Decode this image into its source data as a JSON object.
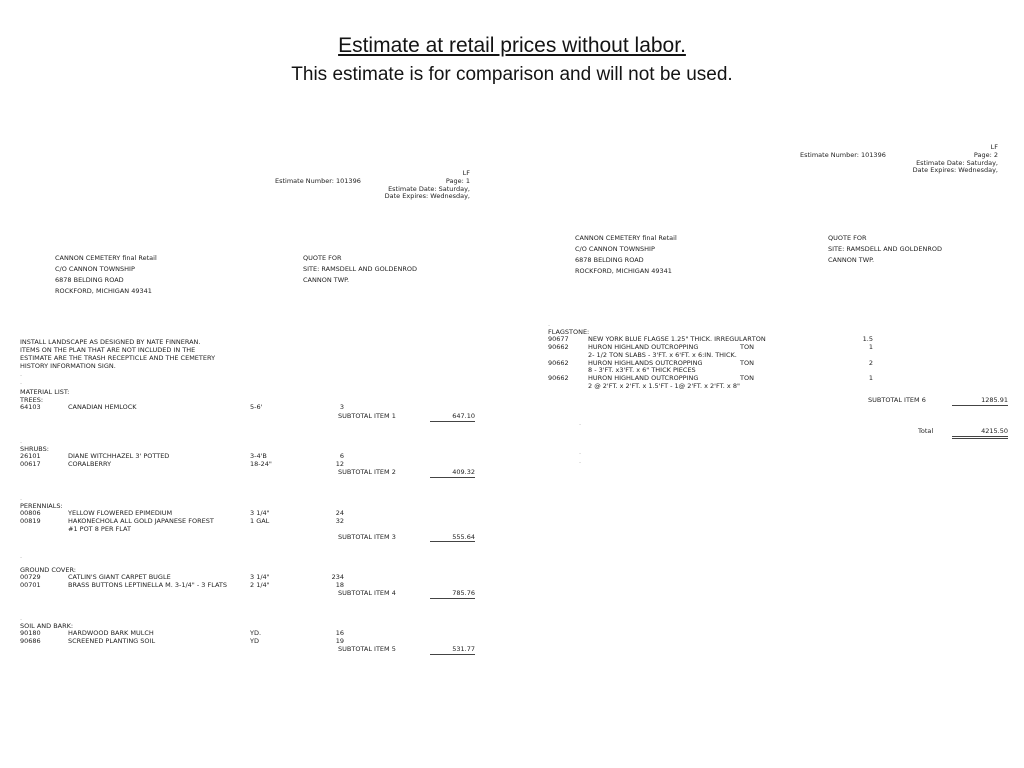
{
  "title": {
    "line1": "Estimate at retail prices without labor.",
    "line2": "This estimate is for comparison and will not be used."
  },
  "dot": ".",
  "page1": {
    "header": {
      "lf": "LF",
      "estimate_number": "Estimate Number: 101396",
      "page": "Page: 1",
      "estimate_date": "Estimate Date: Saturday,",
      "date_expires": "Date Expires:  Wednesday,"
    },
    "customer": [
      "CANNON CEMETERY final Retail",
      "C/O CANNON TOWNSHIP",
      "6878 BELDING ROAD",
      "ROCKFORD, MICHIGAN 49341"
    ],
    "quote": [
      "QUOTE FOR",
      "SITE:  RAMSDELL AND GOLDENROD",
      "CANNON TWP."
    ],
    "intro": [
      "INSTALL LANDSCAPE AS DESIGNED BY NATE FINNERAN.",
      "ITEMS ON THE PLAN THAT ARE NOT INCLUDED IN THE",
      "ESTIMATE ARE THE TRASH RECEPTICLE AND THE CEMETERY",
      "HISTORY INFORMATION SIGN."
    ],
    "material_list_heading": "MATERIAL LIST:",
    "sections": {
      "trees": {
        "heading": "TREES:",
        "rows": [
          {
            "code": "64103",
            "desc": "CANADIAN HEMLOCK",
            "size": "5-6'",
            "qty": "3"
          }
        ],
        "subtotal_label": "SUBTOTAL ITEM 1",
        "subtotal_value": "647.10"
      },
      "shrubs": {
        "heading": "SHRUBS:",
        "rows": [
          {
            "code": "26101",
            "desc": "DIANE WITCHHAZEL 3' POTTED",
            "size": "3-4'B",
            "qty": "6"
          },
          {
            "code": "00617",
            "desc": "CORALBERRY",
            "size": "18-24\"",
            "qty": "12"
          }
        ],
        "subtotal_label": "SUBTOTAL ITEM 2",
        "subtotal_value": "409.32"
      },
      "perennials": {
        "heading": "PERENNIALS:",
        "rows": [
          {
            "code": "00806",
            "desc": "YELLOW FLOWERED EPIMEDIUM",
            "size": "3 1/4\"",
            "qty": "24"
          },
          {
            "code": "00819",
            "desc": "HAKONECHOLA ALL GOLD JAPANESE FOREST",
            "size": "1 GAL",
            "qty": "32",
            "desc2": "#1 POT 8 PER FLAT"
          }
        ],
        "subtotal_label": "SUBTOTAL ITEM 3",
        "subtotal_value": "555.64"
      },
      "ground_cover": {
        "heading": "GROUND COVER:",
        "rows": [
          {
            "code": "00729",
            "desc": "CATLIN'S GIANT CARPET BUGLE",
            "size": "3 1/4\"",
            "qty": "234"
          },
          {
            "code": "00701",
            "desc": "BRASS BUTTONS LEPTINELLA M. 3-1/4\" - 3 FLATS",
            "size": "2 1/4\"",
            "qty": "18"
          }
        ],
        "subtotal_label": "SUBTOTAL ITEM 4",
        "subtotal_value": "785.76"
      },
      "soil_and_bark": {
        "heading": "SOIL AND BARK:",
        "rows": [
          {
            "code": "90180",
            "desc": "HARDWOOD BARK MULCH",
            "size": "YD.",
            "qty": "16"
          },
          {
            "code": "90686",
            "desc": "SCREENED PLANTING SOIL",
            "size": "YD",
            "qty": "19"
          }
        ],
        "subtotal_label": "SUBTOTAL ITEM 5",
        "subtotal_value": "531.77"
      }
    }
  },
  "page2": {
    "header": {
      "lf": "LF",
      "estimate_number": "Estimate Number: 101396",
      "page": "Page: 2",
      "estimate_date": "Estimate Date: Saturday,",
      "date_expires": "Date Expires:  Wednesday,"
    },
    "customer": [
      "CANNON CEMETERY final Retail",
      "C/O CANNON TOWNSHIP",
      "6878 BELDING ROAD",
      "ROCKFORD, MICHIGAN 49341"
    ],
    "quote": [
      "QUOTE FOR",
      "SITE:  RAMSDELL AND GOLDENROD",
      "CANNON TWP."
    ],
    "sections": {
      "flagstone": {
        "heading": "FLAGSTONE:",
        "rows": [
          {
            "code": "90677",
            "desc": "NEW YORK BLUE FLAGSE 1.25\" THICK.  IRREGULAR",
            "unit": "TON",
            "qty": "1.5"
          },
          {
            "code": "90662",
            "desc": "HURON HIGHLAND OUTCROPPING",
            "unit": "TON",
            "qty": "1",
            "desc2": "2- 1/2 TON SLABS - 3'FT. x 6'FT. x 6:IN. THICK."
          },
          {
            "code": "90662",
            "desc": "HURON HIGHLANDS OUTCROPPING",
            "unit": "TON",
            "qty": "2",
            "desc2": "8 - 3'FT. x3'FT. x 6\" THICK PIECES"
          },
          {
            "code": "90662",
            "desc": "HURON HIGHLAND OUTCROPPING",
            "unit": "TON",
            "qty": "1",
            "desc2": "2 @ 2'FT. x 2'FT. x 1.5'FT - 1@ 2'FT. x 2'FT. x 8\""
          }
        ],
        "subtotal_label": "SUBTOTAL ITEM 6",
        "subtotal_value": "1285.91"
      }
    },
    "total_label": "Total",
    "total_value": "4215.50",
    "trailing_dots": [
      ".",
      ".",
      "."
    ]
  }
}
